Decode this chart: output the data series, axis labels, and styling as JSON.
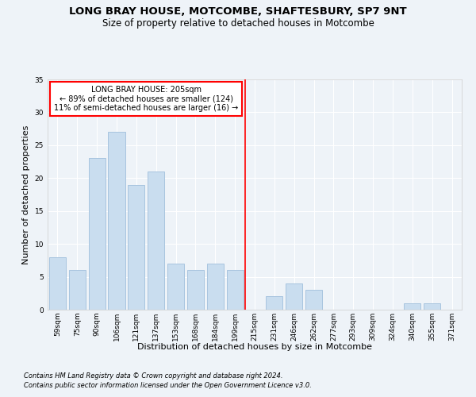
{
  "title1": "LONG BRAY HOUSE, MOTCOMBE, SHAFTESBURY, SP7 9NT",
  "title2": "Size of property relative to detached houses in Motcombe",
  "xlabel": "Distribution of detached houses by size in Motcombe",
  "ylabel": "Number of detached properties",
  "categories": [
    "59sqm",
    "75sqm",
    "90sqm",
    "106sqm",
    "121sqm",
    "137sqm",
    "153sqm",
    "168sqm",
    "184sqm",
    "199sqm",
    "215sqm",
    "231sqm",
    "246sqm",
    "262sqm",
    "277sqm",
    "293sqm",
    "309sqm",
    "324sqm",
    "340sqm",
    "355sqm",
    "371sqm"
  ],
  "values": [
    8,
    6,
    23,
    27,
    19,
    21,
    7,
    6,
    7,
    6,
    0,
    2,
    4,
    3,
    0,
    0,
    0,
    0,
    1,
    1,
    0
  ],
  "bar_color": "#c9ddef",
  "bar_edge_color": "#a8c4df",
  "annotation_text": "LONG BRAY HOUSE: 205sqm\n← 89% of detached houses are smaller (124)\n11% of semi-detached houses are larger (16) →",
  "annotation_box_color": "white",
  "annotation_box_edge": "red",
  "vline_color": "red",
  "ylim": [
    0,
    35
  ],
  "yticks": [
    0,
    5,
    10,
    15,
    20,
    25,
    30,
    35
  ],
  "background_color": "#eef3f8",
  "grid_color": "white",
  "footnote1": "Contains HM Land Registry data © Crown copyright and database right 2024.",
  "footnote2": "Contains public sector information licensed under the Open Government Licence v3.0.",
  "title1_fontsize": 9.5,
  "title2_fontsize": 8.5,
  "xlabel_fontsize": 8,
  "ylabel_fontsize": 8,
  "tick_fontsize": 6.5,
  "footnote_fontsize": 6,
  "annot_fontsize": 7
}
